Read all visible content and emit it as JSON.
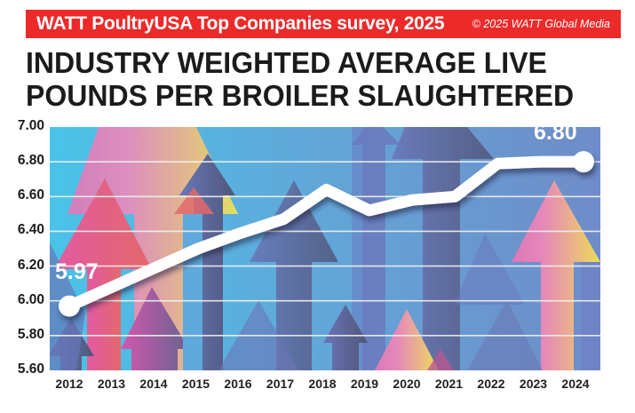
{
  "header": {
    "banner_title": "WATT PoultryUSA Top Companies survey, 2025",
    "copyright": "© 2025 WATT Global Media",
    "title_line1": "INDUSTRY WEIGHTED AVERAGE LIVE",
    "title_line2": "POUNDS PER BROILER SLAUGHTERED"
  },
  "colors": {
    "banner_red": "#ec2a2a",
    "line_white": "#ffffff",
    "background_blue": "#5fa8d8",
    "arrow_purple": "#6b6aa8",
    "arrow_pink": "#f45a8c",
    "arrow_yellow": "#f8e04a"
  },
  "labels": {
    "start_value": "5.97",
    "end_value": "6.80"
  },
  "y_ticks": [
    "7.00",
    "6.80",
    "6.60",
    "6.40",
    "6.20",
    "6.00",
    "5.80",
    "5.60"
  ],
  "x_ticks": [
    "2012",
    "2013",
    "2014",
    "2015",
    "2016",
    "2017",
    "2018",
    "2019",
    "2020",
    "2021",
    "2022",
    "2023",
    "2024"
  ],
  "chart_data": {
    "type": "line",
    "title": "INDUSTRY WEIGHTED AVERAGE LIVE POUNDS PER BROILER SLAUGHTERED",
    "subtitle": "WATT PoultryUSA Top Companies survey, 2025",
    "xlabel": "",
    "ylabel": "",
    "categories": [
      "2012",
      "2013",
      "2014",
      "2015",
      "2016",
      "2017",
      "2018",
      "2019",
      "2020",
      "2021",
      "2022",
      "2023",
      "2024"
    ],
    "series": [
      {
        "name": "Live pounds per broiler",
        "values": [
          5.97,
          6.08,
          6.19,
          6.3,
          6.39,
          6.47,
          6.64,
          6.52,
          6.58,
          6.6,
          6.79,
          6.8,
          6.8
        ]
      }
    ],
    "annotations": [
      {
        "x": "2012",
        "text": "5.97"
      },
      {
        "x": "2024",
        "text": "6.80"
      }
    ],
    "ylim": [
      5.6,
      7.0
    ],
    "yticks": [
      5.6,
      5.8,
      6.0,
      6.2,
      6.4,
      6.6,
      6.8,
      7.0
    ],
    "grid": true,
    "legend": "none"
  }
}
